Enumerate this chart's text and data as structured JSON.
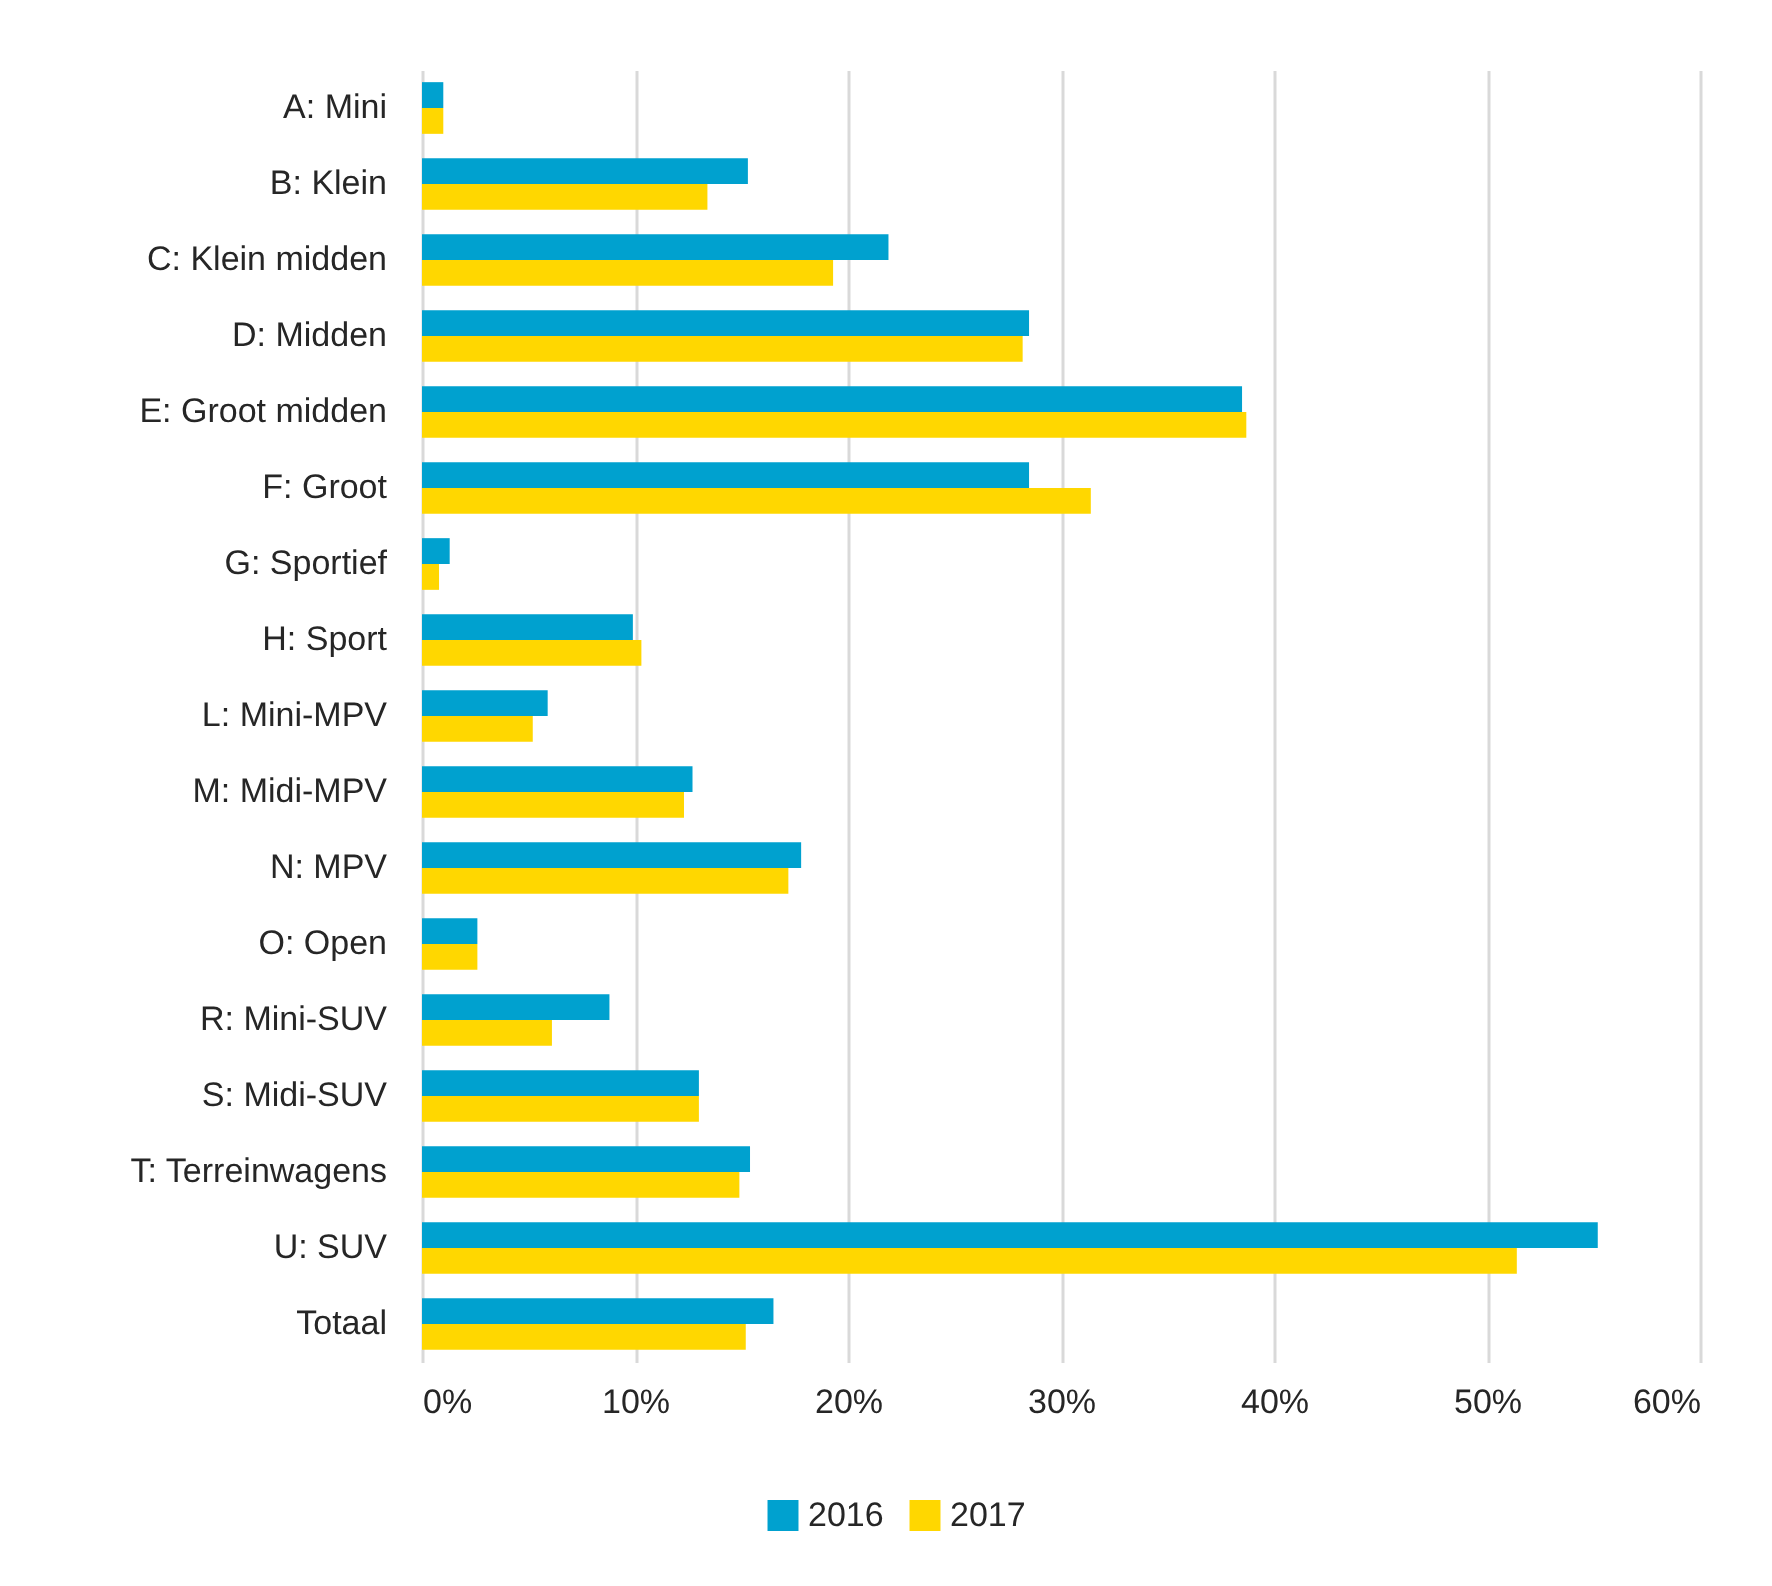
{
  "chart_data": {
    "type": "bar",
    "orientation": "horizontal",
    "categories": [
      "A: Mini",
      "B: Klein",
      "C: Klein midden",
      "D: Midden",
      "E: Groot midden",
      "F: Groot",
      "G: Sportief",
      "H: Sport",
      "L: Mini-MPV",
      "M: Midi-MPV",
      "N: MPV",
      "O: Open",
      "R: Mini-SUV",
      "S: Midi-SUV",
      "T: Terreinwagens",
      "U: SUV",
      "Totaal"
    ],
    "series": [
      {
        "name": "2016",
        "color": "#00a1cf",
        "values": [
          1.0,
          15.3,
          21.9,
          28.5,
          38.5,
          28.5,
          1.3,
          9.9,
          5.9,
          12.7,
          17.8,
          2.6,
          8.8,
          13.0,
          15.4,
          55.2,
          16.5
        ]
      },
      {
        "name": "2017",
        "color": "#ffd700",
        "values": [
          1.0,
          13.4,
          19.3,
          28.2,
          38.7,
          31.4,
          0.8,
          10.3,
          5.2,
          12.3,
          17.2,
          2.6,
          6.1,
          13.0,
          14.9,
          51.4,
          15.2
        ]
      }
    ],
    "xlim": [
      0,
      60
    ],
    "xticks": [
      {
        "value": 0,
        "label": "0%"
      },
      {
        "value": 10,
        "label": "10%"
      },
      {
        "value": 20,
        "label": "20%"
      },
      {
        "value": 30,
        "label": "30%"
      },
      {
        "value": 40,
        "label": "40%"
      },
      {
        "value": 50,
        "label": "50%"
      },
      {
        "value": 60,
        "label": "60%"
      }
    ],
    "grid": "x",
    "legend": "bottom"
  }
}
